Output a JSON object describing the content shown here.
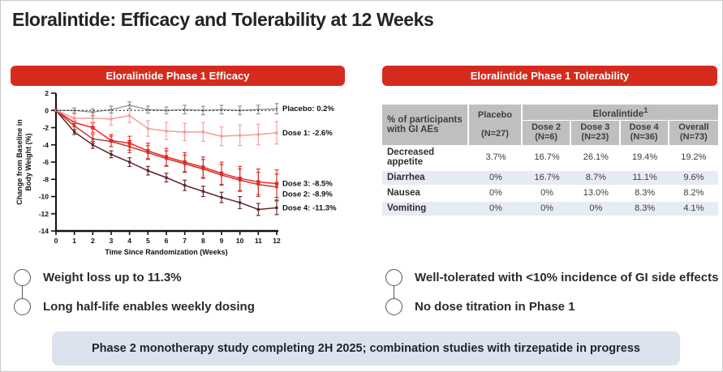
{
  "title": "Eloralintide: Efficacy and Tolerability at 12 Weeks",
  "efficacy": {
    "header": "Eloralintide Phase 1 Efficacy",
    "bullets": [
      "Weight loss up to 11.3%",
      "Long half-life enables weekly dosing"
    ]
  },
  "tolerability": {
    "header": "Eloralintide Phase 1 Tolerability",
    "table": {
      "corner_label": "% of participants with GI AEs",
      "placebo_label": "Placebo",
      "placebo_n": "(N=27)",
      "group_label": "Eloralintide",
      "group_superscript": "1",
      "columns": [
        {
          "label": "Dose 2",
          "n": "(N=6)"
        },
        {
          "label": "Dose 3",
          "n": "(N=23)"
        },
        {
          "label": "Dose 4",
          "n": "(N=36)"
        },
        {
          "label": "Overall",
          "n": "(N=73)"
        }
      ],
      "rows": [
        {
          "label": "Decreased appetite",
          "values": [
            "3.7%",
            "16.7%",
            "26.1%",
            "19.4%",
            "19.2%"
          ]
        },
        {
          "label": "Diarrhea",
          "values": [
            "0%",
            "16.7%",
            "8.7%",
            "11.1%",
            "9.6%"
          ]
        },
        {
          "label": "Nausea",
          "values": [
            "0%",
            "0%",
            "13.0%",
            "8.3%",
            "8.2%"
          ]
        },
        {
          "label": "Vomiting",
          "values": [
            "0%",
            "0%",
            "0%",
            "8.3%",
            "4.1%"
          ]
        }
      ]
    },
    "bullets": [
      "Well-tolerated with <10% incidence of GI side effects",
      "No dose titration in Phase 1"
    ]
  },
  "footer_banner": "Phase 2 monotherapy study completing 2H 2025; combination studies with tirzepatide in progress",
  "colors": {
    "accent_red": "#D52B1E",
    "table_header_gray": "#BFBFBF",
    "table_alt_row": "#E7EBF4",
    "banner_bg": "#DCE3EE"
  },
  "chart_data": {
    "type": "line",
    "x": [
      0,
      1,
      2,
      3,
      4,
      5,
      6,
      7,
      8,
      9,
      10,
      11,
      12
    ],
    "xlabel": "Time Since Randomization (Weeks)",
    "ylabel": "Change from Baseline in Body Weight (%)",
    "ylabel_lines": [
      "Change from Baseline in",
      "Body Weight (%)"
    ],
    "ylim": [
      -14,
      2
    ],
    "ytick_step": 2,
    "grid": false,
    "reference_line_y": 0,
    "legend_position": "right-of-lines",
    "series": [
      {
        "name": "Placebo",
        "label": "Placebo: 0.2%",
        "final_value": 0.2,
        "color": "#8C8C8C",
        "style": "solid",
        "marker": "circle",
        "values": [
          0,
          0,
          -0.2,
          0.1,
          0.6,
          0.1,
          0,
          0.1,
          0,
          0.1,
          0,
          0.1,
          0.2
        ],
        "errors": [
          0,
          0.3,
          0.4,
          0.4,
          0.4,
          0.4,
          0.4,
          0.5,
          0.5,
          0.5,
          0.5,
          0.5,
          0.6
        ]
      },
      {
        "name": "Dose 1",
        "label": "Dose 1: -2.6%",
        "final_value": -2.6,
        "color": "#F59B95",
        "style": "solid",
        "marker": "square",
        "values": [
          0,
          -0.9,
          -0.9,
          -1.0,
          -0.6,
          -2.1,
          -2.4,
          -2.5,
          -2.5,
          -3.0,
          -2.9,
          -2.8,
          -2.6
        ],
        "errors": [
          0,
          0.5,
          0.6,
          0.7,
          0.8,
          0.9,
          1.0,
          1.0,
          1.1,
          1.1,
          1.2,
          1.2,
          1.3
        ]
      },
      {
        "name": "Dose 2",
        "label": "Dose 2: -8.9%",
        "final_value": -8.9,
        "color": "#C0392B",
        "style": "solid",
        "marker": "square",
        "values": [
          0,
          -1.8,
          -3.3,
          -3.6,
          -4.2,
          -4.9,
          -5.6,
          -6.2,
          -6.8,
          -7.5,
          -8.1,
          -8.6,
          -8.9
        ],
        "errors": [
          0,
          0.4,
          0.5,
          0.6,
          0.7,
          0.8,
          0.9,
          1.0,
          1.1,
          1.2,
          1.3,
          1.4,
          1.5
        ]
      },
      {
        "name": "Dose 3",
        "label": "Dose 3: -8.5%",
        "final_value": -8.5,
        "color": "#F91F1F",
        "style": "solid",
        "marker": "square",
        "values": [
          0,
          -1.4,
          -2.0,
          -3.5,
          -3.8,
          -4.7,
          -5.4,
          -6.0,
          -6.6,
          -7.3,
          -7.9,
          -8.3,
          -8.5
        ],
        "errors": [
          0,
          0.5,
          0.6,
          0.7,
          0.8,
          0.9,
          1.0,
          1.1,
          1.2,
          1.3,
          1.4,
          1.5,
          1.6
        ]
      },
      {
        "name": "Dose 4",
        "label": "Dose 4: -11.3%",
        "final_value": -11.3,
        "color": "#5E2125",
        "style": "solid",
        "marker": "square",
        "values": [
          0,
          -2.5,
          -4.0,
          -5.1,
          -6.0,
          -7.0,
          -7.8,
          -8.7,
          -9.4,
          -10.1,
          -10.7,
          -11.5,
          -11.3
        ],
        "errors": [
          0,
          0.3,
          0.4,
          0.4,
          0.5,
          0.5,
          0.5,
          0.6,
          0.6,
          0.6,
          0.7,
          0.7,
          0.8
        ]
      }
    ]
  }
}
